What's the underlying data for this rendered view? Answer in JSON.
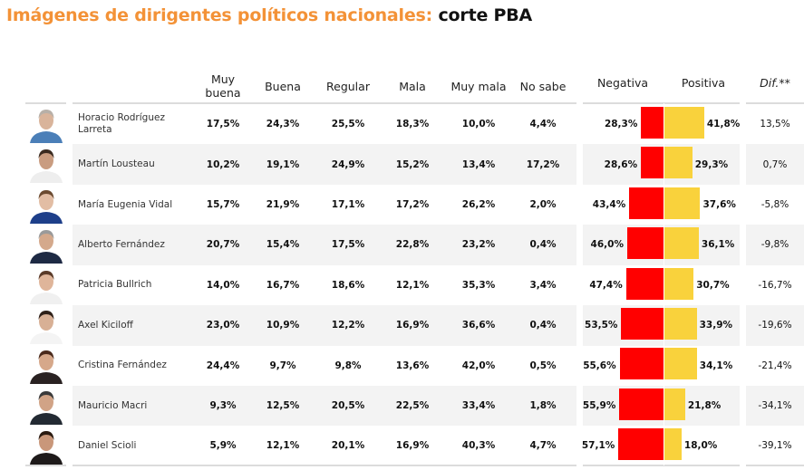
{
  "title": {
    "orange_part": "Imágenes de dirigentes políticos nacionales:",
    "black_part": "corte PBA"
  },
  "colors": {
    "title_accent": "#F39237",
    "negative_bar": "#FF0000",
    "positive_bar": "#F9D23C",
    "row_alt_bg": "#f3f3f3"
  },
  "headers": {
    "muy_buena": "Muy buena",
    "buena": "Buena",
    "regular": "Regular",
    "mala": "Mala",
    "muy_mala": "Muy mala",
    "no_sabe": "No sabe",
    "negativa": "Negativa",
    "positiva": "Positiva",
    "dif": "Dif.**"
  },
  "chart_data": {
    "type": "table",
    "title": "Imágenes de dirigentes políticos nacionales: corte PBA",
    "columns": [
      "Muy buena",
      "Buena",
      "Regular",
      "Mala",
      "Muy mala",
      "No sabe",
      "Negativa",
      "Positiva",
      "Dif.**"
    ],
    "bar_series": [
      {
        "name": "Negativa",
        "color": "#FF0000",
        "direction": "left"
      },
      {
        "name": "Positiva",
        "color": "#F9D23C",
        "direction": "right"
      }
    ],
    "rows": [
      {
        "name": "Horacio Rodríguez Larreta",
        "muy_buena": "17,5%",
        "buena": "24,3%",
        "regular": "25,5%",
        "mala": "18,3%",
        "muy_mala": "10,0%",
        "no_sabe": "4,4%",
        "negativa_label": "28,3%",
        "positiva_label": "41,8%",
        "negativa": 28.3,
        "positiva": 41.8,
        "dif": "13,5%",
        "photo": "bald man blue shirt"
      },
      {
        "name": "Martín Lousteau",
        "muy_buena": "10,2%",
        "buena": "19,1%",
        "regular": "24,9%",
        "mala": "15,2%",
        "muy_mala": "13,4%",
        "no_sabe": "17,2%",
        "negativa_label": "28,6%",
        "positiva_label": "29,3%",
        "negativa": 28.6,
        "positiva": 29.3,
        "dif": "0,7%",
        "photo": "man curly hair white shirt"
      },
      {
        "name": "María Eugenia Vidal",
        "muy_buena": "15,7%",
        "buena": "21,9%",
        "regular": "17,1%",
        "mala": "17,2%",
        "muy_mala": "26,2%",
        "no_sabe": "2,0%",
        "negativa_label": "43,4%",
        "positiva_label": "37,6%",
        "negativa": 43.4,
        "positiva": 37.6,
        "dif": "-5,8%",
        "photo": "woman blue dress"
      },
      {
        "name": "Alberto Fernández",
        "muy_buena": "20,7%",
        "buena": "15,4%",
        "regular": "17,5%",
        "mala": "22,8%",
        "muy_mala": "23,2%",
        "no_sabe": "0,4%",
        "negativa_label": "46,0%",
        "positiva_label": "36,1%",
        "negativa": 46.0,
        "positiva": 36.1,
        "dif": "-9,8%",
        "photo": "man suit red tie"
      },
      {
        "name": "Patricia Bullrich",
        "muy_buena": "14,0%",
        "buena": "16,7%",
        "regular": "18,6%",
        "mala": "12,1%",
        "muy_mala": "35,3%",
        "no_sabe": "3,4%",
        "negativa_label": "47,4%",
        "positiva_label": "30,7%",
        "negativa": 47.4,
        "positiva": 30.7,
        "dif": "-16,7%",
        "photo": "woman light top"
      },
      {
        "name": "Axel Kiciloff",
        "muy_buena": "23,0%",
        "buena": "10,9%",
        "regular": "12,2%",
        "mala": "16,9%",
        "muy_mala": "36,6%",
        "no_sabe": "0,4%",
        "negativa_label": "53,5%",
        "positiva_label": "33,9%",
        "negativa": 53.5,
        "positiva": 33.9,
        "dif": "-19,6%",
        "photo": "man white shirt"
      },
      {
        "name": "Cristina Fernández",
        "muy_buena": "24,4%",
        "buena": "9,7%",
        "regular": "9,8%",
        "mala": "13,6%",
        "muy_mala": "42,0%",
        "no_sabe": "0,5%",
        "negativa_label": "55,6%",
        "positiva_label": "34,1%",
        "negativa": 55.6,
        "positiva": 34.1,
        "dif": "-21,4%",
        "photo": "woman long dark hair"
      },
      {
        "name": "Mauricio Macri",
        "muy_buena": "9,3%",
        "buena": "12,5%",
        "regular": "20,5%",
        "mala": "22,5%",
        "muy_mala": "33,4%",
        "no_sabe": "1,8%",
        "negativa_label": "55,9%",
        "positiva_label": "21,8%",
        "negativa": 55.9,
        "positiva": 21.8,
        "dif": "-34,1%",
        "photo": "man dark suit"
      },
      {
        "name": "Daniel Scioli",
        "muy_buena": "5,9%",
        "buena": "12,1%",
        "regular": "20,1%",
        "mala": "16,9%",
        "muy_mala": "40,3%",
        "no_sabe": "4,7%",
        "negativa_label": "57,1%",
        "positiva_label": "18,0%",
        "negativa": 57.1,
        "positiva": 18.0,
        "dif": "-39,1%",
        "photo": "man suit orange tie"
      }
    ]
  }
}
